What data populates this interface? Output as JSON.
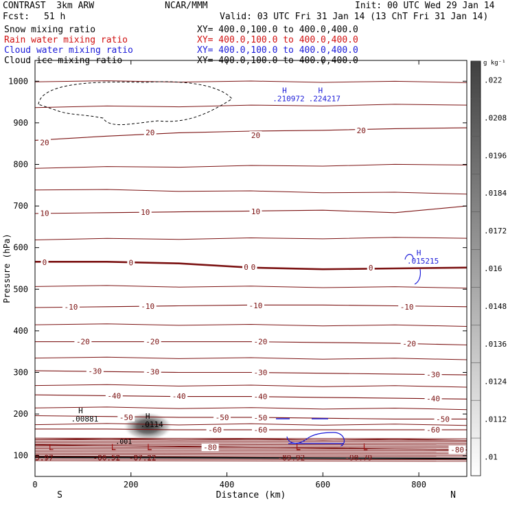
{
  "header": {
    "model": "CONTRAST  3km ARW",
    "org": "NCAR/MMM",
    "init": "Init: 00 UTC Wed 29 Jan 14",
    "fcst_label": "Fcst:",
    "fcst_value": "51 h",
    "valid": "Valid: 03 UTC Fri 31 Jan 14 (13 ChT Fri 31 Jan 14)"
  },
  "fields": [
    {
      "name": "Snow mixing ratio",
      "xy": "XY= 400.0,100.0 to 400.0,400.0",
      "color": "#000000"
    },
    {
      "name": "Rain water mixing ratio",
      "xy": "XY= 400.0,100.0 to 400.0,400.0",
      "color": "#d01010"
    },
    {
      "name": "Cloud water mixing ratio",
      "xy": "XY= 400.0,100.0 to 400.0,400.0",
      "color": "#1a1ad8"
    },
    {
      "name": "Cloud ice mixing ratio",
      "xy": "XY= 400.0,100.0 to 400.0,400.0",
      "color": "#000000"
    }
  ],
  "chart_data": {
    "type": "contour",
    "xlabel": "Distance (km)",
    "ylabel": "Pressure (hPa)",
    "xlim": [
      0,
      900
    ],
    "ylim": [
      1050,
      50
    ],
    "x_ticks": [
      0,
      200,
      400,
      600,
      800
    ],
    "y_ticks": [
      100,
      200,
      300,
      400,
      500,
      600,
      700,
      800,
      900,
      1000
    ],
    "x_end_labels": {
      "left": "S",
      "right": "N"
    },
    "colorbar": {
      "unit": "g kg⁻¹",
      "ticks": [
        ".022",
        ".0208",
        ".0196",
        ".0184",
        ".0172",
        ".016",
        ".0148",
        ".0136",
        ".0124",
        ".0112",
        ".01"
      ]
    },
    "temperature_isotherms_C": [
      {
        "t": 20,
        "p": [
          858,
          868,
          876,
          880,
          882,
          886,
          888
        ]
      },
      {
        "t": 10,
        "p": [
          682,
          684,
          686,
          688,
          690,
          684,
          700
        ]
      },
      {
        "t": 0,
        "p": [
          566,
          566,
          562,
          552,
          548,
          550,
          552
        ]
      },
      {
        "t": -10,
        "p": [
          456,
          458,
          460,
          462,
          462,
          460,
          458
        ]
      },
      {
        "t": -20,
        "p": [
          374,
          374,
          374,
          374,
          372,
          370,
          366
        ]
      },
      {
        "t": -30,
        "p": [
          304,
          302,
          300,
          300,
          298,
          296,
          294
        ]
      },
      {
        "t": -40,
        "p": [
          246,
          244,
          242,
          242,
          240,
          238,
          236
        ]
      },
      {
        "t": -50,
        "p": [
          196,
          194,
          192,
          192,
          190,
          188,
          188
        ]
      },
      {
        "t": -60,
        "p": [
          164,
          164,
          162,
          162,
          162,
          162,
          162
        ]
      },
      {
        "t": -80,
        "p": [
          126,
          124,
          122,
          120,
          118,
          116,
          114
        ]
      }
    ],
    "isotherm_labels": [
      {
        "text": "20",
        "x": 20,
        "p": 853
      },
      {
        "text": "20",
        "x": 240,
        "p": 877
      },
      {
        "text": "20",
        "x": 460,
        "p": 870
      },
      {
        "text": "20",
        "x": 680,
        "p": 882
      },
      {
        "text": "10",
        "x": 20,
        "p": 683
      },
      {
        "text": "10",
        "x": 230,
        "p": 685
      },
      {
        "text": "10",
        "x": 460,
        "p": 687
      },
      {
        "text": "0",
        "x": 20,
        "p": 565
      },
      {
        "text": "0",
        "x": 200,
        "p": 564
      },
      {
        "text": "0",
        "x": 440,
        "p": 553
      },
      {
        "text": "0",
        "x": 455,
        "p": 553
      },
      {
        "text": "0",
        "x": 700,
        "p": 552
      },
      {
        "text": "-10",
        "x": 75,
        "p": 458
      },
      {
        "text": "-10",
        "x": 235,
        "p": 459
      },
      {
        "text": "-10",
        "x": 460,
        "p": 461
      },
      {
        "text": "-10",
        "x": 775,
        "p": 458
      },
      {
        "text": "-20",
        "x": 100,
        "p": 374
      },
      {
        "text": "-20",
        "x": 245,
        "p": 374
      },
      {
        "text": "-20",
        "x": 470,
        "p": 374
      },
      {
        "text": "-20",
        "x": 780,
        "p": 369
      },
      {
        "text": "-30",
        "x": 125,
        "p": 303
      },
      {
        "text": "-30",
        "x": 245,
        "p": 302
      },
      {
        "text": "-30",
        "x": 470,
        "p": 300
      },
      {
        "text": "-30",
        "x": 830,
        "p": 295
      },
      {
        "text": "-40",
        "x": 165,
        "p": 244
      },
      {
        "text": "-40",
        "x": 300,
        "p": 243
      },
      {
        "text": "-40",
        "x": 470,
        "p": 242
      },
      {
        "text": "-40",
        "x": 830,
        "p": 237
      },
      {
        "text": "-50",
        "x": 190,
        "p": 192
      },
      {
        "text": "-50",
        "x": 390,
        "p": 192
      },
      {
        "text": "-50",
        "x": 470,
        "p": 191
      },
      {
        "text": "-50",
        "x": 850,
        "p": 188
      },
      {
        "text": "-60",
        "x": 375,
        "p": 162
      },
      {
        "text": "-60",
        "x": 470,
        "p": 162
      },
      {
        "text": "-60",
        "x": 830,
        "p": 162
      },
      {
        "text": "-80",
        "x": 365,
        "p": 120
      },
      {
        "text": "-80",
        "x": 880,
        "p": 114
      }
    ],
    "low_markers": [
      {
        "label": "L",
        "value": "5.97",
        "x": 5,
        "p": 105
      },
      {
        "label": "L",
        "value": "-86.52",
        "x": 135,
        "p": 105
      },
      {
        "label": "L",
        "value": "-87.22",
        "x": 210,
        "p": 105
      },
      {
        "label": "L",
        "value": "-89.92",
        "x": 520,
        "p": 105
      },
      {
        "label": "L",
        "value": "-90.79",
        "x": 660,
        "p": 105
      }
    ],
    "high_markers": [
      {
        "label": "H",
        "value": ".00881",
        "x": 95,
        "p": 185,
        "field": "cloud_ice"
      },
      {
        "label": "H",
        "value": ".0114",
        "x": 235,
        "p": 172,
        "field": "snow"
      },
      {
        "label": "H",
        "value": ".015215",
        "x": 800,
        "p": 565,
        "field": "cloud_water"
      },
      {
        "label": "H",
        "value": ".210972",
        "x": 520,
        "p": 955,
        "field": "cloud_water"
      },
      {
        "label": "H",
        "value": ".224217",
        "x": 595,
        "p": 955,
        "field": "cloud_water"
      }
    ],
    "cloud_ice_contour": {
      "value": ".001",
      "label_x": 185,
      "label_p": 128
    },
    "snow_maximum": {
      "x": 235,
      "p": 170,
      "value": ".0114"
    }
  }
}
